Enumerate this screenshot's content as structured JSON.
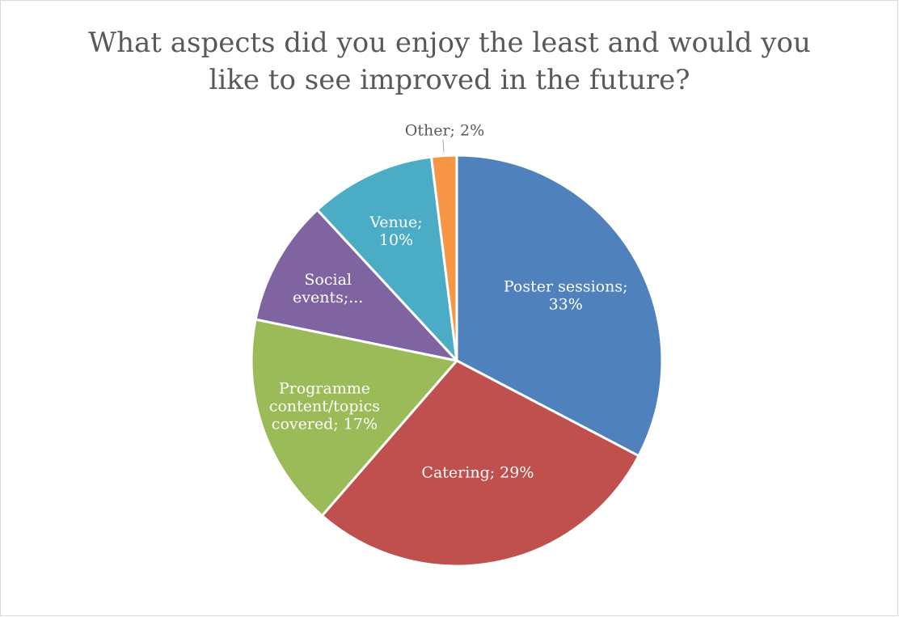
{
  "chart_data": {
    "type": "pie",
    "title_lines": [
      "What aspects did you enjoy the least and would you",
      "like to see improved in the future?"
    ],
    "slices": [
      {
        "name": "Poster sessions",
        "value": 33,
        "label_lines": [
          "Poster sessions;",
          "33%"
        ],
        "color": "#4F81BD",
        "label_color": "#ffffff"
      },
      {
        "name": "Catering",
        "value": 29,
        "label_lines": [
          "Catering; 29%"
        ],
        "color": "#C0504D",
        "label_color": "#ffffff"
      },
      {
        "name": "Programme content/topics covered",
        "value": 17,
        "label_lines": [
          "Programme",
          "content/topics",
          "covered; 17%"
        ],
        "color": "#9BBB59",
        "label_color": "#ffffff"
      },
      {
        "name": "Social events",
        "value": 10,
        "label_lines": [
          "Social",
          "events;..."
        ],
        "color": "#8064A2",
        "label_color": "#ffffff"
      },
      {
        "name": "Venue",
        "value": 10,
        "label_lines": [
          "Venue;",
          "10%"
        ],
        "color": "#4BACC6",
        "label_color": "#ffffff"
      },
      {
        "name": "Other",
        "value": 2,
        "label_lines": [
          "Other; 2%"
        ],
        "color": "#F79646",
        "label_color": "#595959"
      }
    ],
    "start_angle_deg": 0,
    "direction": "clockwise",
    "legend": "none"
  }
}
